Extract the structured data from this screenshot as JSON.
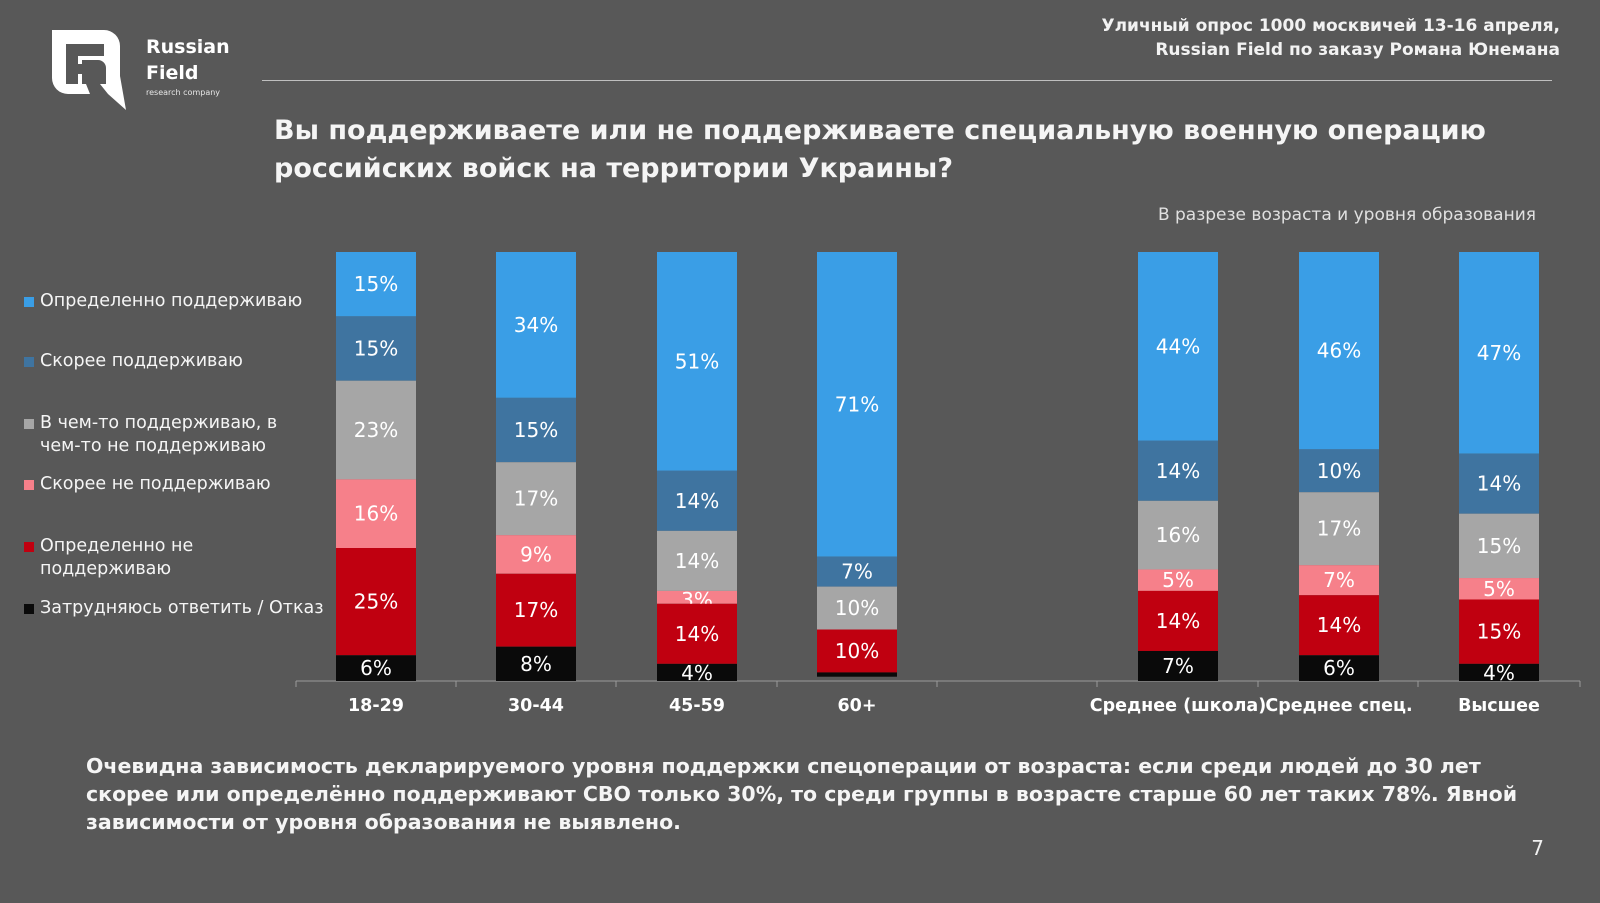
{
  "logo": {
    "name_line1": "Russian",
    "name_line2": "Field",
    "tagline": "research company"
  },
  "source": {
    "line1": "Уличный опрос 1000 москвичей 13-16 апреля,",
    "line2": "Russian Field по заказу Романа Юнемана"
  },
  "question": "Вы поддерживаете или не поддерживаете специальную военную операцию российских войск на территории Украины?",
  "subtitle": "В разрезе возраста и уровня образования",
  "legend": [
    {
      "label": "Определенно поддерживаю",
      "color": "#3a9ee6"
    },
    {
      "label": "Скорее поддерживаю",
      "color": "#3f74a0"
    },
    {
      "label": "В чем-то поддерживаю, в чем-то не поддерживаю",
      "color": "#a6a6a6"
    },
    {
      "label": "Скорее не поддерживаю",
      "color": "#f6808a"
    },
    {
      "label": "Определенно не поддерживаю",
      "color": "#c00010"
    },
    {
      "label": "Затрудняюсь ответить / Отказ",
      "color": "#0a0a0a"
    }
  ],
  "chart_data": {
    "type": "bar",
    "stacked": true,
    "categories": [
      "18-29",
      "30-44",
      "45-59",
      "60+",
      "Среднее (школа)",
      "Среднее спец.",
      "Высшее"
    ],
    "series": [
      {
        "name": "Определенно поддерживаю",
        "color": "#3a9ee6",
        "values": [
          15,
          34,
          51,
          71,
          44,
          46,
          47
        ]
      },
      {
        "name": "Скорее поддерживаю",
        "color": "#3f74a0",
        "values": [
          15,
          15,
          14,
          7,
          14,
          10,
          14
        ]
      },
      {
        "name": "В чем-то поддерживаю, в чем-то не поддерживаю",
        "color": "#a6a6a6",
        "values": [
          23,
          17,
          14,
          10,
          16,
          17,
          15
        ]
      },
      {
        "name": "Скорее не поддерживаю",
        "color": "#f6808a",
        "values": [
          16,
          9,
          3,
          0,
          5,
          7,
          5
        ]
      },
      {
        "name": "Определенно не поддерживаю",
        "color": "#c00010",
        "values": [
          25,
          17,
          14,
          10,
          14,
          14,
          15
        ]
      },
      {
        "name": "Затрудняюсь ответить / Отказ",
        "color": "#0a0a0a",
        "values": [
          6,
          8,
          4,
          1,
          7,
          6,
          4
        ]
      }
    ],
    "data_labels": [
      [
        "15%",
        "34%",
        "51%",
        "71%",
        "44%",
        "46%",
        "47%"
      ],
      [
        "15%",
        "15%",
        "14%",
        "7%",
        "14%",
        "10%",
        "14%"
      ],
      [
        "23%",
        "17%",
        "14%",
        "10%",
        "16%",
        "17%",
        "15%"
      ],
      [
        "16%",
        "9%",
        "3%",
        "",
        "5%",
        "7%",
        "5%"
      ],
      [
        "25%",
        "17%",
        "14%",
        "10%",
        "14%",
        "14%",
        "15%"
      ],
      [
        "6%",
        "8%",
        "4%",
        "",
        "7%",
        "6%",
        "4%"
      ]
    ],
    "ylim": [
      0,
      100
    ],
    "grid": false
  },
  "footnote": "Очевидна зависимость декларируемого уровня поддержки спецоперации от возраста: если среди людей до 30 лет скорее или определённо поддерживают СВО только 30%, то среди группы в возрасте старше 60 лет таких 78%.  Явной зависимости от уровня образования не выявлено.",
  "page_number": "7"
}
